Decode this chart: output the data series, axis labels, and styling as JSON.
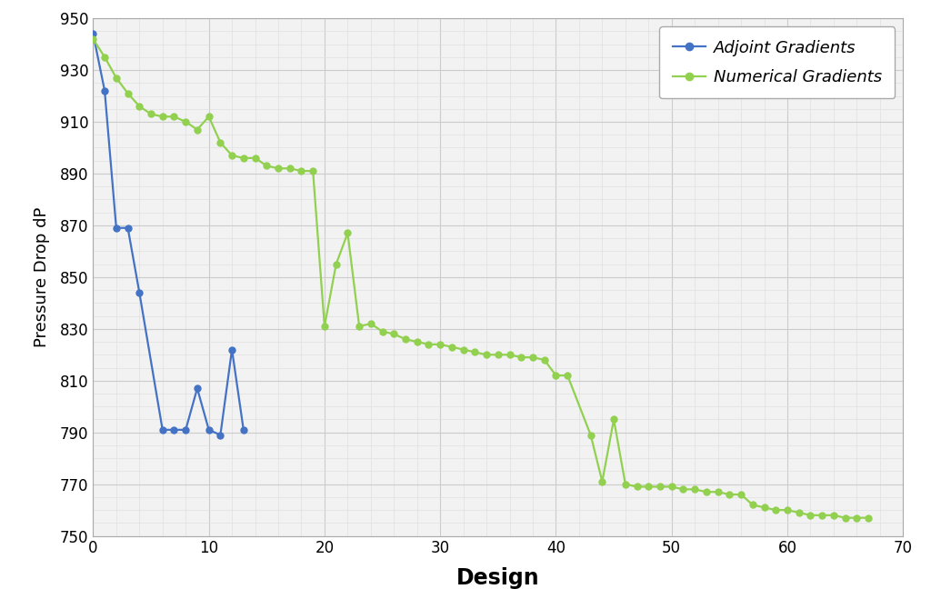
{
  "adjoint_x": [
    0,
    1,
    2,
    3,
    4,
    6,
    7,
    8,
    9,
    10,
    11,
    12,
    13
  ],
  "adjoint_y": [
    944,
    922,
    869,
    869,
    844,
    791,
    791,
    791,
    807,
    791,
    789,
    822,
    791
  ],
  "numerical_x": [
    0,
    1,
    2,
    3,
    4,
    5,
    6,
    7,
    8,
    9,
    10,
    11,
    12,
    13,
    14,
    15,
    16,
    17,
    18,
    19,
    20,
    21,
    22,
    23,
    24,
    25,
    26,
    27,
    28,
    29,
    30,
    31,
    32,
    33,
    34,
    35,
    36,
    37,
    38,
    39,
    40,
    41,
    43,
    44,
    45,
    46,
    47,
    48,
    49,
    50,
    51,
    52,
    53,
    54,
    55,
    56,
    57,
    58,
    59,
    60,
    61,
    62,
    63,
    64,
    65,
    66,
    67
  ],
  "numerical_y": [
    942,
    935,
    927,
    921,
    916,
    913,
    912,
    912,
    910,
    907,
    912,
    902,
    897,
    896,
    896,
    893,
    892,
    892,
    891,
    891,
    831,
    855,
    867,
    831,
    832,
    829,
    828,
    826,
    825,
    824,
    824,
    823,
    822,
    821,
    820,
    820,
    820,
    819,
    819,
    818,
    812,
    812,
    789,
    771,
    795,
    770,
    769,
    769,
    769,
    769,
    768,
    768,
    767,
    767,
    766,
    766,
    762,
    761,
    760,
    760,
    759,
    758,
    758,
    758,
    757,
    757,
    757
  ],
  "adjoint_color": "#4472C4",
  "numerical_color": "#92D050",
  "adjoint_label": "Adjoint Gradients",
  "numerical_label": "Numerical Gradients",
  "xlabel": "Design",
  "ylabel": "Pressure Drop dP",
  "xlim": [
    0,
    68
  ],
  "ylim": [
    750,
    950
  ],
  "yticks": [
    750,
    770,
    790,
    810,
    830,
    850,
    870,
    890,
    910,
    930,
    950
  ],
  "xticks": [
    0,
    10,
    20,
    30,
    40,
    50,
    60,
    70
  ],
  "major_grid_color": "#cccccc",
  "minor_grid_color": "#e0e0e0",
  "bg_color": "#ffffff",
  "plot_bg_color": "#f2f2f2",
  "marker_size": 5,
  "line_width": 1.6,
  "xlabel_fontsize": 17,
  "ylabel_fontsize": 13,
  "tick_fontsize": 12,
  "legend_fontsize": 13
}
